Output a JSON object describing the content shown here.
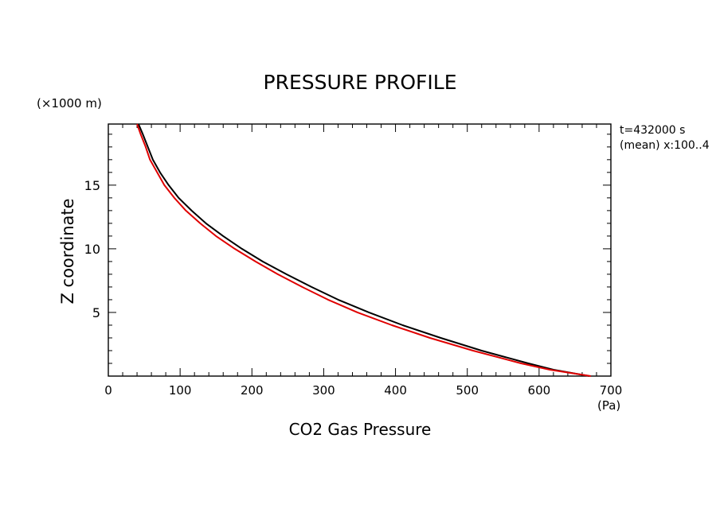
{
  "chart_data": {
    "type": "line",
    "title": "PRESSURE PROFILE",
    "xlabel": "CO2 Gas Pressure",
    "x_unit": "(Pa)",
    "ylabel": "Z coordinate",
    "y_unit": "(×1000 m)",
    "annotation_lines": [
      "t=432000 s",
      "(mean) x:100..4"
    ],
    "xlim": [
      0,
      700
    ],
    "ylim": [
      0,
      19.8
    ],
    "x_ticks": [
      0,
      100,
      200,
      300,
      400,
      500,
      600,
      700
    ],
    "x_tick_labels": [
      "0",
      "100",
      "200",
      "300",
      "400",
      "500",
      "600",
      "700"
    ],
    "y_ticks": [
      5,
      10,
      15
    ],
    "y_tick_labels": [
      "5",
      "10",
      "15"
    ],
    "grid": false,
    "series": [
      {
        "color": "#000000",
        "points": [
          [
            42,
            19.8
          ],
          [
            48,
            19
          ],
          [
            55,
            18
          ],
          [
            62,
            17
          ],
          [
            72,
            16
          ],
          [
            84,
            15
          ],
          [
            98,
            14
          ],
          [
            116,
            13
          ],
          [
            136,
            12
          ],
          [
            160,
            11
          ],
          [
            186,
            10
          ],
          [
            215,
            9
          ],
          [
            248,
            8
          ],
          [
            283,
            7
          ],
          [
            320,
            6
          ],
          [
            363,
            5
          ],
          [
            410,
            4
          ],
          [
            463,
            3
          ],
          [
            520,
            2
          ],
          [
            585,
            1
          ],
          [
            620,
            0.5
          ],
          [
            670,
            0
          ]
        ]
      },
      {
        "color": "#e00000",
        "points": [
          [
            40,
            19.8
          ],
          [
            45,
            19
          ],
          [
            52,
            18
          ],
          [
            58,
            17
          ],
          [
            68,
            16
          ],
          [
            78,
            15
          ],
          [
            92,
            14
          ],
          [
            108,
            13
          ],
          [
            128,
            12
          ],
          [
            150,
            11
          ],
          [
            176,
            10
          ],
          [
            205,
            9
          ],
          [
            236,
            8
          ],
          [
            270,
            7
          ],
          [
            306,
            6
          ],
          [
            347,
            5
          ],
          [
            395,
            4
          ],
          [
            448,
            3
          ],
          [
            508,
            2
          ],
          [
            575,
            1
          ],
          [
            615,
            0.5
          ],
          [
            672,
            0
          ]
        ]
      }
    ]
  }
}
